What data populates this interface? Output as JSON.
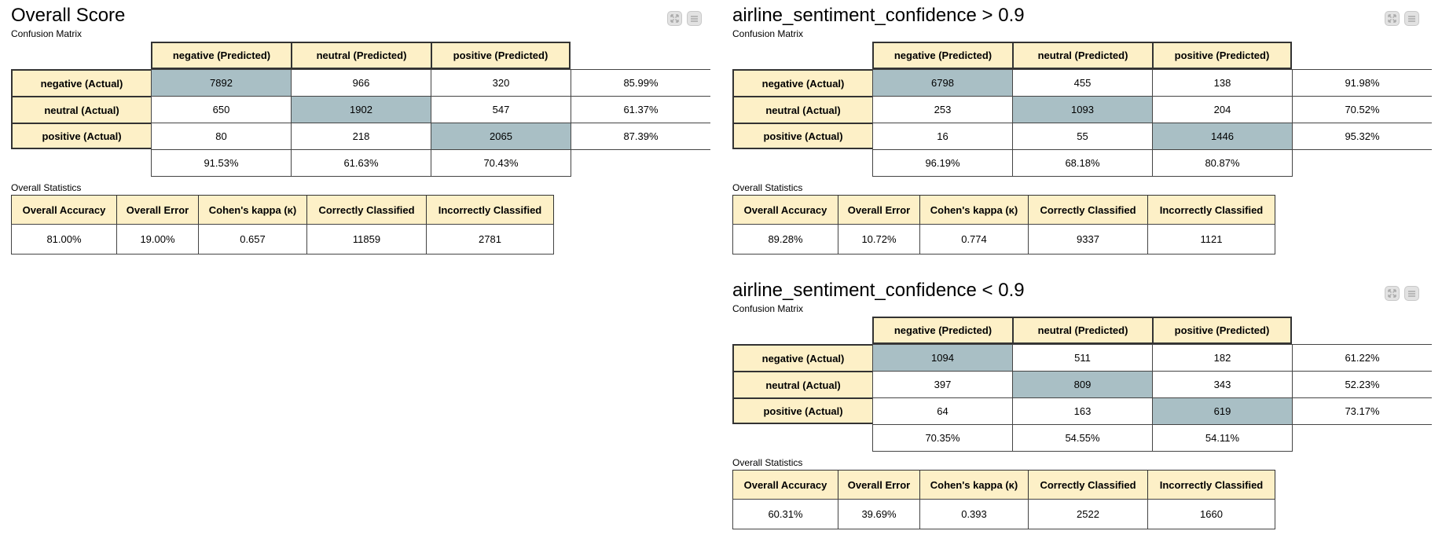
{
  "panels": [
    {
      "title": "Overall Score",
      "cm_label": "Confusion Matrix",
      "col_headers": [
        "negative (Predicted)",
        "neutral (Predicted)",
        "positive (Predicted)"
      ],
      "rows": [
        {
          "label": "negative (Actual)",
          "values": [
            "7892",
            "966",
            "320"
          ],
          "accuracy": "85.99%"
        },
        {
          "label": "neutral (Actual)",
          "values": [
            "650",
            "1902",
            "547"
          ],
          "accuracy": "61.37%"
        },
        {
          "label": "positive (Actual)",
          "values": [
            "80",
            "218",
            "2065"
          ],
          "accuracy": "87.39%"
        }
      ],
      "col_accuracy": [
        "91.53%",
        "61.63%",
        "70.43%"
      ],
      "stats_label": "Overall Statistics",
      "stats_headers": [
        "Overall Accuracy",
        "Overall Error",
        "Cohen's kappa (κ)",
        "Correctly Classified",
        "Incorrectly Classified"
      ],
      "stats_values": [
        "81.00%",
        "19.00%",
        "0.657",
        "11859",
        "2781"
      ]
    },
    {
      "title": "airline_sentiment_confidence > 0.9",
      "cm_label": "Confusion Matrix",
      "col_headers": [
        "negative (Predicted)",
        "neutral (Predicted)",
        "positive (Predicted)"
      ],
      "rows": [
        {
          "label": "negative (Actual)",
          "values": [
            "6798",
            "455",
            "138"
          ],
          "accuracy": "91.98%"
        },
        {
          "label": "neutral (Actual)",
          "values": [
            "253",
            "1093",
            "204"
          ],
          "accuracy": "70.52%"
        },
        {
          "label": "positive (Actual)",
          "values": [
            "16",
            "55",
            "1446"
          ],
          "accuracy": "95.32%"
        }
      ],
      "col_accuracy": [
        "96.19%",
        "68.18%",
        "80.87%"
      ],
      "stats_label": "Overall Statistics",
      "stats_headers": [
        "Overall Accuracy",
        "Overall Error",
        "Cohen's kappa (κ)",
        "Correctly Classified",
        "Incorrectly Classified"
      ],
      "stats_values": [
        "89.28%",
        "10.72%",
        "0.774",
        "9337",
        "1121"
      ]
    },
    {
      "title": "airline_sentiment_confidence < 0.9",
      "cm_label": "Confusion Matrix",
      "col_headers": [
        "negative (Predicted)",
        "neutral (Predicted)",
        "positive (Predicted)"
      ],
      "rows": [
        {
          "label": "negative (Actual)",
          "values": [
            "1094",
            "511",
            "182"
          ],
          "accuracy": "61.22%"
        },
        {
          "label": "neutral (Actual)",
          "values": [
            "397",
            "809",
            "343"
          ],
          "accuracy": "52.23%"
        },
        {
          "label": "positive (Actual)",
          "values": [
            "64",
            "163",
            "619"
          ],
          "accuracy": "73.17%"
        }
      ],
      "col_accuracy": [
        "70.35%",
        "54.55%",
        "54.11%"
      ],
      "stats_label": "Overall Statistics",
      "stats_headers": [
        "Overall Accuracy",
        "Overall Error",
        "Cohen's kappa (κ)",
        "Correctly Classified",
        "Incorrectly Classified"
      ],
      "stats_values": [
        "60.31%",
        "39.69%",
        "0.393",
        "2522",
        "1660"
      ]
    }
  ],
  "controls": {
    "expand_icon": "expand-icon",
    "menu_icon": "menu-icon"
  },
  "colors": {
    "header_bg": "#fdf0c7",
    "diagonal_bg": "#a9bfc5"
  }
}
